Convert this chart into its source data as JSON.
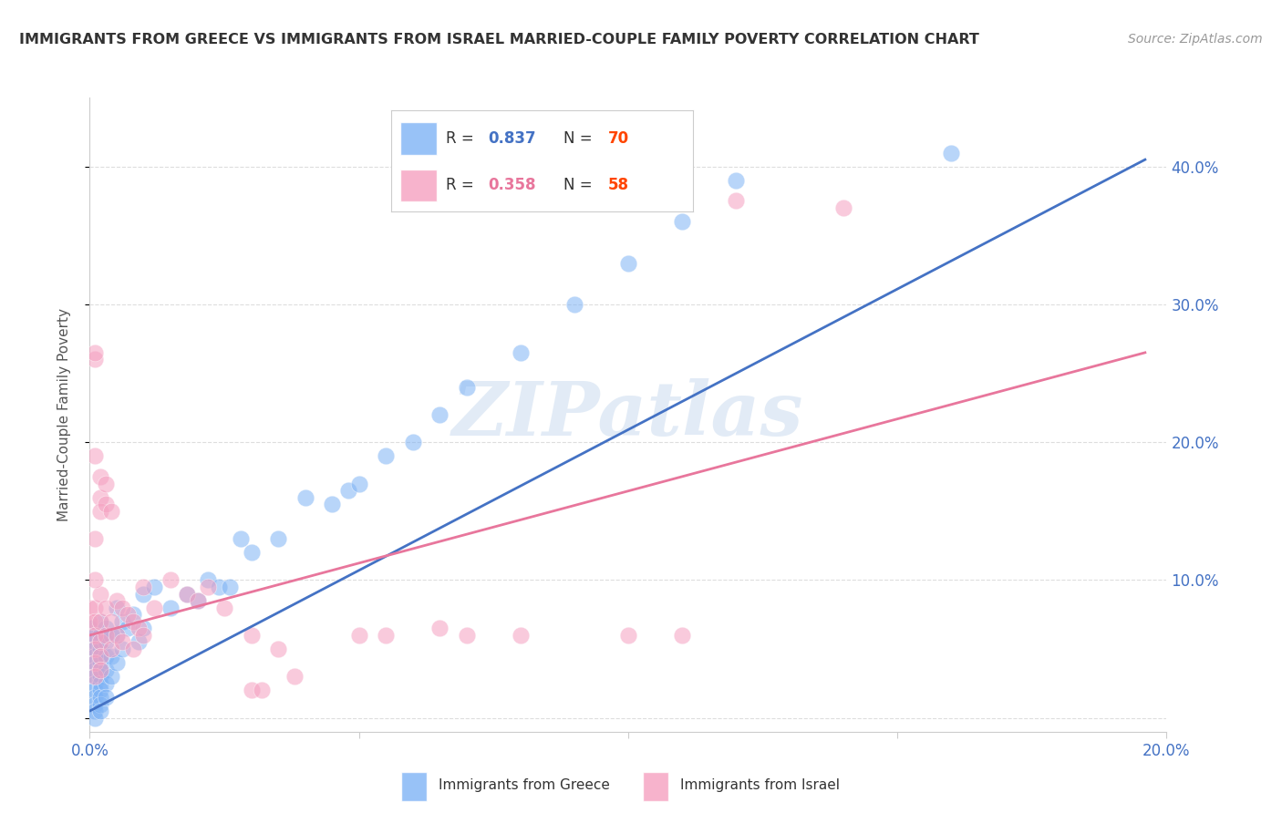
{
  "title": "IMMIGRANTS FROM GREECE VS IMMIGRANTS FROM ISRAEL MARRIED-COUPLE FAMILY POVERTY CORRELATION CHART",
  "source": "Source: ZipAtlas.com",
  "ylabel": "Married-Couple Family Poverty",
  "xlim": [
    0.0,
    0.2
  ],
  "ylim": [
    -0.01,
    0.45
  ],
  "xticks": [
    0.0,
    0.05,
    0.1,
    0.15,
    0.2
  ],
  "xtick_labels": [
    "0.0%",
    "",
    "",
    "",
    "20.0%"
  ],
  "yticks_right": [
    0.1,
    0.2,
    0.3,
    0.4
  ],
  "ytick_labels_right": [
    "10.0%",
    "20.0%",
    "30.0%",
    "40.0%"
  ],
  "blue_R": 0.837,
  "blue_N": 70,
  "pink_R": 0.358,
  "pink_N": 58,
  "blue_color": "#7EB3F5",
  "pink_color": "#F5A0C0",
  "blue_line_color": "#4472C4",
  "pink_line_color": "#E8769C",
  "legend_label_blue": "Immigrants from Greece",
  "legend_label_pink": "Immigrants from Israel",
  "watermark": "ZIPatlas",
  "blue_scatter": [
    [
      0.0,
      0.065
    ],
    [
      0.001,
      0.06
    ],
    [
      0.001,
      0.055
    ],
    [
      0.001,
      0.05
    ],
    [
      0.001,
      0.045
    ],
    [
      0.001,
      0.04
    ],
    [
      0.001,
      0.035
    ],
    [
      0.001,
      0.03
    ],
    [
      0.001,
      0.025
    ],
    [
      0.001,
      0.02
    ],
    [
      0.001,
      0.015
    ],
    [
      0.001,
      0.01
    ],
    [
      0.001,
      0.005
    ],
    [
      0.001,
      0.0
    ],
    [
      0.002,
      0.07
    ],
    [
      0.002,
      0.06
    ],
    [
      0.002,
      0.055
    ],
    [
      0.002,
      0.05
    ],
    [
      0.002,
      0.045
    ],
    [
      0.002,
      0.04
    ],
    [
      0.002,
      0.035
    ],
    [
      0.002,
      0.03
    ],
    [
      0.002,
      0.025
    ],
    [
      0.002,
      0.02
    ],
    [
      0.002,
      0.015
    ],
    [
      0.002,
      0.01
    ],
    [
      0.002,
      0.005
    ],
    [
      0.003,
      0.065
    ],
    [
      0.003,
      0.055
    ],
    [
      0.003,
      0.045
    ],
    [
      0.003,
      0.035
    ],
    [
      0.003,
      0.025
    ],
    [
      0.003,
      0.015
    ],
    [
      0.004,
      0.06
    ],
    [
      0.004,
      0.045
    ],
    [
      0.004,
      0.03
    ],
    [
      0.005,
      0.08
    ],
    [
      0.005,
      0.06
    ],
    [
      0.005,
      0.04
    ],
    [
      0.006,
      0.07
    ],
    [
      0.006,
      0.05
    ],
    [
      0.007,
      0.065
    ],
    [
      0.008,
      0.075
    ],
    [
      0.009,
      0.055
    ],
    [
      0.01,
      0.09
    ],
    [
      0.01,
      0.065
    ],
    [
      0.012,
      0.095
    ],
    [
      0.015,
      0.08
    ],
    [
      0.018,
      0.09
    ],
    [
      0.02,
      0.085
    ],
    [
      0.022,
      0.1
    ],
    [
      0.024,
      0.095
    ],
    [
      0.026,
      0.095
    ],
    [
      0.028,
      0.13
    ],
    [
      0.03,
      0.12
    ],
    [
      0.035,
      0.13
    ],
    [
      0.04,
      0.16
    ],
    [
      0.045,
      0.155
    ],
    [
      0.048,
      0.165
    ],
    [
      0.05,
      0.17
    ],
    [
      0.055,
      0.19
    ],
    [
      0.06,
      0.2
    ],
    [
      0.065,
      0.22
    ],
    [
      0.07,
      0.24
    ],
    [
      0.08,
      0.265
    ],
    [
      0.09,
      0.3
    ],
    [
      0.1,
      0.33
    ],
    [
      0.11,
      0.36
    ],
    [
      0.12,
      0.39
    ],
    [
      0.16,
      0.41
    ]
  ],
  "pink_scatter": [
    [
      0.0,
      0.08
    ],
    [
      0.0,
      0.07
    ],
    [
      0.001,
      0.26
    ],
    [
      0.001,
      0.265
    ],
    [
      0.001,
      0.19
    ],
    [
      0.001,
      0.13
    ],
    [
      0.001,
      0.08
    ],
    [
      0.001,
      0.07
    ],
    [
      0.001,
      0.06
    ],
    [
      0.001,
      0.05
    ],
    [
      0.001,
      0.04
    ],
    [
      0.001,
      0.03
    ],
    [
      0.002,
      0.175
    ],
    [
      0.002,
      0.16
    ],
    [
      0.002,
      0.15
    ],
    [
      0.002,
      0.09
    ],
    [
      0.002,
      0.07
    ],
    [
      0.002,
      0.055
    ],
    [
      0.002,
      0.045
    ],
    [
      0.002,
      0.035
    ],
    [
      0.003,
      0.17
    ],
    [
      0.003,
      0.155
    ],
    [
      0.003,
      0.08
    ],
    [
      0.003,
      0.06
    ],
    [
      0.004,
      0.15
    ],
    [
      0.004,
      0.07
    ],
    [
      0.004,
      0.05
    ],
    [
      0.005,
      0.085
    ],
    [
      0.005,
      0.06
    ],
    [
      0.006,
      0.08
    ],
    [
      0.006,
      0.055
    ],
    [
      0.007,
      0.075
    ],
    [
      0.008,
      0.07
    ],
    [
      0.008,
      0.05
    ],
    [
      0.009,
      0.065
    ],
    [
      0.01,
      0.095
    ],
    [
      0.01,
      0.06
    ],
    [
      0.012,
      0.08
    ],
    [
      0.015,
      0.1
    ],
    [
      0.018,
      0.09
    ],
    [
      0.02,
      0.085
    ],
    [
      0.022,
      0.095
    ],
    [
      0.025,
      0.08
    ],
    [
      0.03,
      0.06
    ],
    [
      0.03,
      0.02
    ],
    [
      0.032,
      0.02
    ],
    [
      0.035,
      0.05
    ],
    [
      0.038,
      0.03
    ],
    [
      0.05,
      0.06
    ],
    [
      0.055,
      0.06
    ],
    [
      0.065,
      0.065
    ],
    [
      0.07,
      0.06
    ],
    [
      0.08,
      0.06
    ],
    [
      0.1,
      0.06
    ],
    [
      0.11,
      0.06
    ],
    [
      0.12,
      0.375
    ],
    [
      0.14,
      0.37
    ],
    [
      0.001,
      0.1
    ]
  ],
  "blue_line": {
    "x0": 0.0,
    "y0": 0.005,
    "x1": 0.196,
    "y1": 0.405
  },
  "pink_line": {
    "x0": 0.0,
    "y0": 0.06,
    "x1": 0.196,
    "y1": 0.265
  },
  "bg_color": "#FFFFFF",
  "grid_color": "#DDDDDD"
}
